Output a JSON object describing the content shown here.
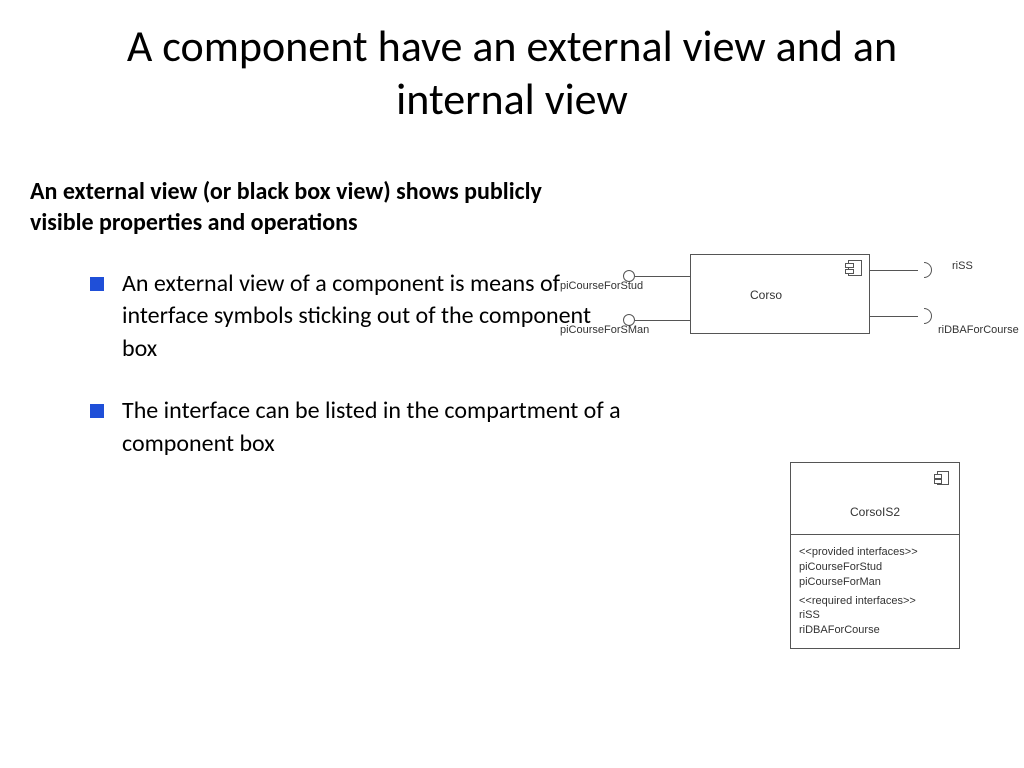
{
  "title": "A component have an external view and an internal view",
  "intro": "An external view (or black box view) shows publicly visible properties and operations",
  "bullets": [
    "An external view of a component is means of interface symbols sticking out of the component box",
    "The interface can be listed in the compartment of  a component box"
  ],
  "bullet_marker_color": "#1f4fd8",
  "diagram1": {
    "component_name": "Corso",
    "provided": [
      "piCourseForStud",
      "piCourseForSMan"
    ],
    "required": [
      "riSS",
      "riDBAForCourse"
    ],
    "box_color": "#555555"
  },
  "diagram2": {
    "component_name": "CorsoIS2",
    "provided_header": "<<provided interfaces>>",
    "provided": [
      "piCourseForStud",
      "piCourseForMan"
    ],
    "required_header": "<<required interfaces>>",
    "required": [
      "riSS",
      "riDBAForCourse"
    ]
  }
}
